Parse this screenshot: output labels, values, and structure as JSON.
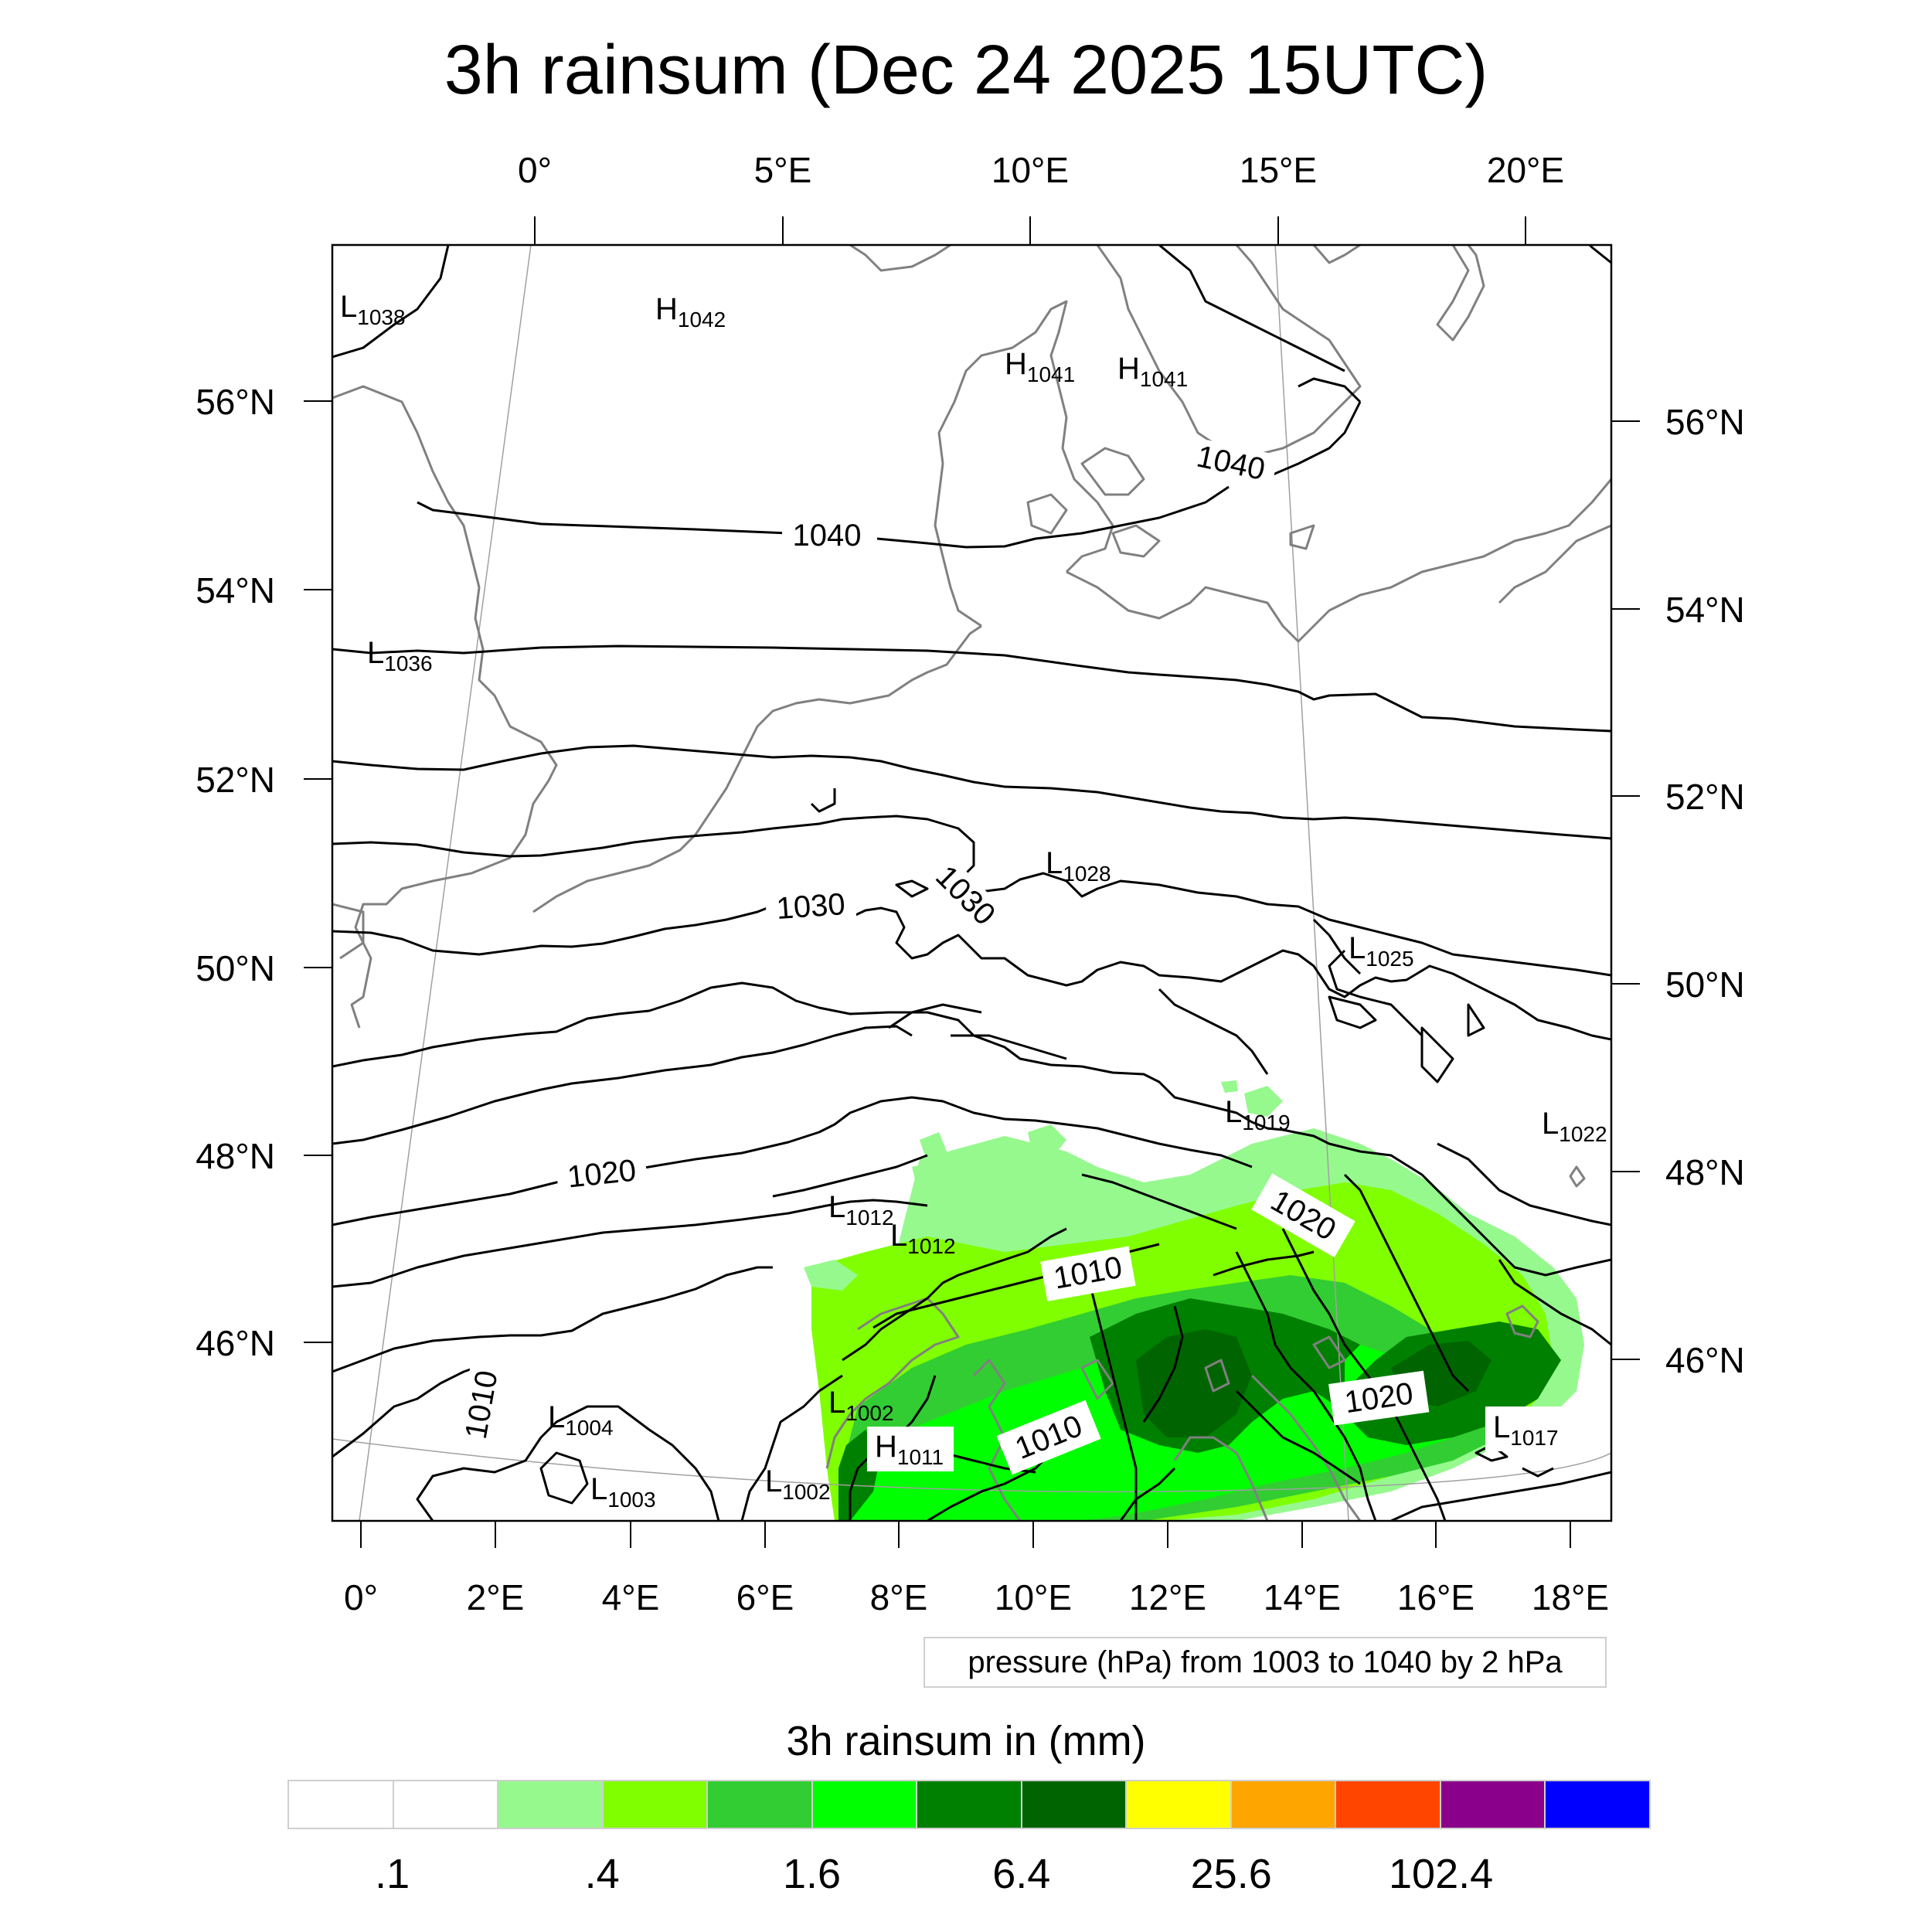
{
  "title": "3h rainsum (Dec 24 2025 15UTC)",
  "top_lon_labels": [
    "0°",
    "5°E",
    "10°E",
    "15°E",
    "20°E"
  ],
  "bottom_lon_labels": [
    "0°",
    "2°E",
    "4°E",
    "6°E",
    "8°E",
    "10°E",
    "12°E",
    "14°E",
    "16°E",
    "18°E"
  ],
  "left_lat_labels": [
    "56°N",
    "54°N",
    "52°N",
    "50°N",
    "48°N",
    "46°N"
  ],
  "right_lat_labels": [
    "56°N",
    "54°N",
    "52°N",
    "50°N",
    "48°N",
    "46°N"
  ],
  "pressure_centers": [
    {
      "type": "L",
      "value": "1038"
    },
    {
      "type": "H",
      "value": "1042"
    },
    {
      "type": "H",
      "value": "1041"
    },
    {
      "type": "H",
      "value": "1041"
    },
    {
      "type": "L",
      "value": "1036"
    },
    {
      "type": "L",
      "value": "1028"
    },
    {
      "type": "L",
      "value": "1025"
    },
    {
      "type": "L",
      "value": "1019"
    },
    {
      "type": "L",
      "value": "1022"
    },
    {
      "type": "L",
      "value": "1012"
    },
    {
      "type": "L",
      "value": "1012"
    },
    {
      "type": "L",
      "value": "1004"
    },
    {
      "type": "L",
      "value": "1003"
    },
    {
      "type": "L",
      "value": "1002"
    },
    {
      "type": "H",
      "value": "1011"
    },
    {
      "type": "L",
      "value": "1002"
    },
    {
      "type": "L",
      "value": "1017"
    }
  ],
  "contour_labels": [
    "1040",
    "1040",
    "1030",
    "1030",
    "1020",
    "1020",
    "1010",
    "1010",
    "1010",
    "1020"
  ],
  "info_box": "pressure (hPa) from 1003 to 1040 by 2 hPa",
  "colorbar": {
    "title": "3h rainsum in (mm)",
    "colors": [
      "#ffffff",
      "#ffffff",
      "#96f98e",
      "#80ff00",
      "#32cd32",
      "#00ff00",
      "#008000",
      "#006400",
      "#ffff00",
      "#ffa500",
      "#ff4500",
      "#8b008b",
      "#0000ff"
    ],
    "labels": [
      ".1",
      ".4",
      "1.6",
      "6.4",
      "25.6",
      "102.4"
    ]
  },
  "colors": {
    "coastline": "#808080",
    "isobar": "#000000",
    "graticule": "#a0a0a0",
    "frame": "#000000"
  }
}
